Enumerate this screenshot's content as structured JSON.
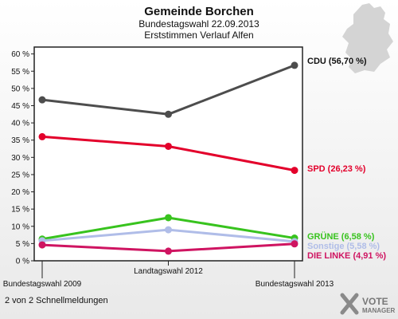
{
  "chart_data": {
    "type": "line",
    "title": "Gemeinde Borchen",
    "subtitle_1": "Bundestagswahl 22.09.2013",
    "subtitle_2": "Erststimmen Verlauf Alfen",
    "categories": [
      "Bundestagswahl 2009",
      "Landtagswahl 2012",
      "Bundestagswahl 2013"
    ],
    "yticks": [
      "0 %",
      "5 %",
      "10 %",
      "15 %",
      "20 %",
      "25 %",
      "30 %",
      "35 %",
      "40 %",
      "45 %",
      "50 %",
      "55 %",
      "60 %"
    ],
    "ylim": [
      0,
      62
    ],
    "grid": false,
    "series": [
      {
        "name": "CDU",
        "label": "CDU (56,70 %)",
        "values": [
          46.7,
          42.5,
          56.7
        ],
        "color": "#4d4d4d",
        "label_color": "#111111"
      },
      {
        "name": "SPD",
        "label": "SPD (26,23 %)",
        "values": [
          36.0,
          33.2,
          26.23
        ],
        "color": "#e3002b",
        "label_color": "#e3002b"
      },
      {
        "name": "GRÜNE",
        "label": "GRÜNE (6,58 %)",
        "values": [
          6.3,
          12.5,
          6.58
        ],
        "color": "#38c31e",
        "label_color": "#38c31e"
      },
      {
        "name": "Sonstige",
        "label": "Sonstige (5,58 %)",
        "values": [
          5.8,
          9.0,
          5.58
        ],
        "color": "#b0bde8",
        "label_color": "#b0bde8"
      },
      {
        "name": "DIE LINKE",
        "label": "DIE LINKE (4,91 %)",
        "values": [
          4.6,
          2.8,
          4.91
        ],
        "color": "#cf1461",
        "label_color": "#cf1461"
      }
    ]
  },
  "footer": {
    "text": "2 von 2 Schnellmeldungen"
  },
  "logo": {
    "line1": "VOTE",
    "line2": "MANAGER",
    "icon": "x-mark-icon"
  },
  "map": {
    "icon": "germany-map-icon"
  }
}
